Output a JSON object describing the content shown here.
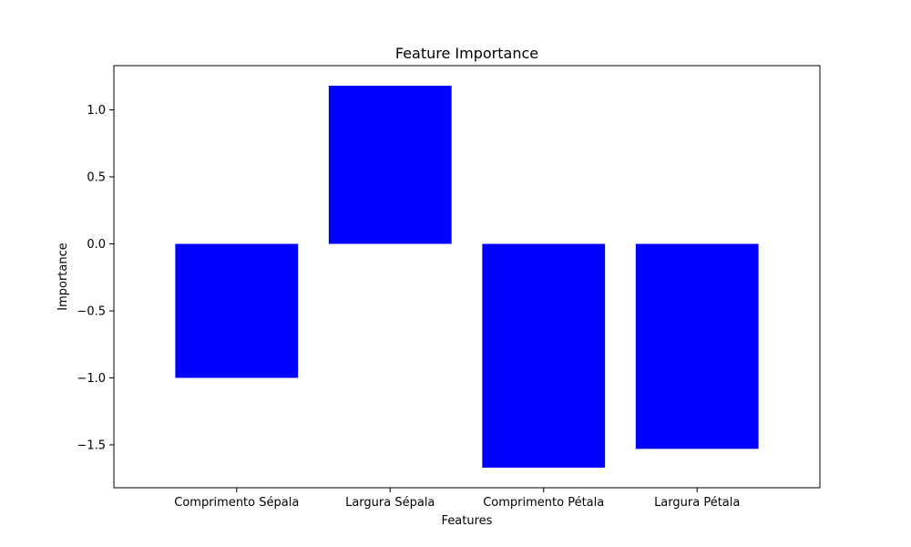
{
  "chart_data": {
    "type": "bar",
    "title": "Feature Importance",
    "xlabel": "Features",
    "ylabel": "Importance",
    "categories": [
      "Comprimento Sépala",
      "Largura Sépala",
      "Comprimento Pétala",
      "Largura Pétala"
    ],
    "values": [
      -1.0,
      1.18,
      -1.67,
      -1.53
    ],
    "ylim": [
      -1.82,
      1.33
    ],
    "yticks": [
      1.0,
      0.5,
      0.0,
      -0.5,
      -1.0,
      -1.5
    ],
    "ytick_labels": [
      "1.0",
      "0.5",
      "0.0",
      "−0.5",
      "−1.0",
      "−1.5"
    ],
    "bar_color": "#0000ff",
    "grid": false,
    "legend": null
  }
}
